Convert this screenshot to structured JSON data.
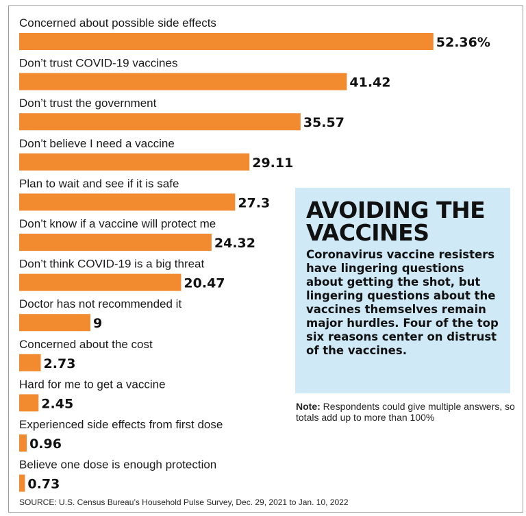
{
  "chart_data": {
    "type": "bar",
    "orientation": "horizontal",
    "categories": [
      "Concerned about possible side effects",
      "Don’t trust COVID-19 vaccines",
      "Don’t trust the government",
      "Don’t believe I need a vaccine",
      "Plan to wait and see if it is safe",
      "Don’t know if a vaccine will protect me",
      "Don’t think COVID-19 is a big threat",
      "Doctor has not recommended it",
      "Concerned about the cost",
      "Hard for me to get a vaccine",
      "Experienced side effects from first dose",
      "Believe one dose is enough protection"
    ],
    "values": [
      52.36,
      41.42,
      35.57,
      29.11,
      27.3,
      24.32,
      20.47,
      9,
      2.73,
      2.45,
      0.96,
      0.73
    ],
    "value_labels": [
      "52.36%",
      "41.42",
      "35.57",
      "29.11",
      "27.3",
      "24.32",
      "20.47",
      "9",
      "2.73",
      "2.45",
      "0.96",
      "0.73"
    ],
    "bar_color": "#f28a30",
    "grid": false,
    "legend": "none"
  },
  "info": {
    "title": "AVOIDING THE VACCINES",
    "body": "Coronavirus vaccine resisters have lingering questions about getting the shot, but lingering questions about the vaccines themselves remain major hurdles. Four of the top six reasons center on distrust of the vaccines.",
    "background": "#cfe9f7"
  },
  "note": {
    "label": "Note:",
    "text": " Respondents could give multiple answers, so totals add up to more than 100%"
  },
  "source": "SOURCE: U.S. Census Bureau’s Household Pulse Survey, Dec. 29, 2021 to Jan. 10, 2022"
}
